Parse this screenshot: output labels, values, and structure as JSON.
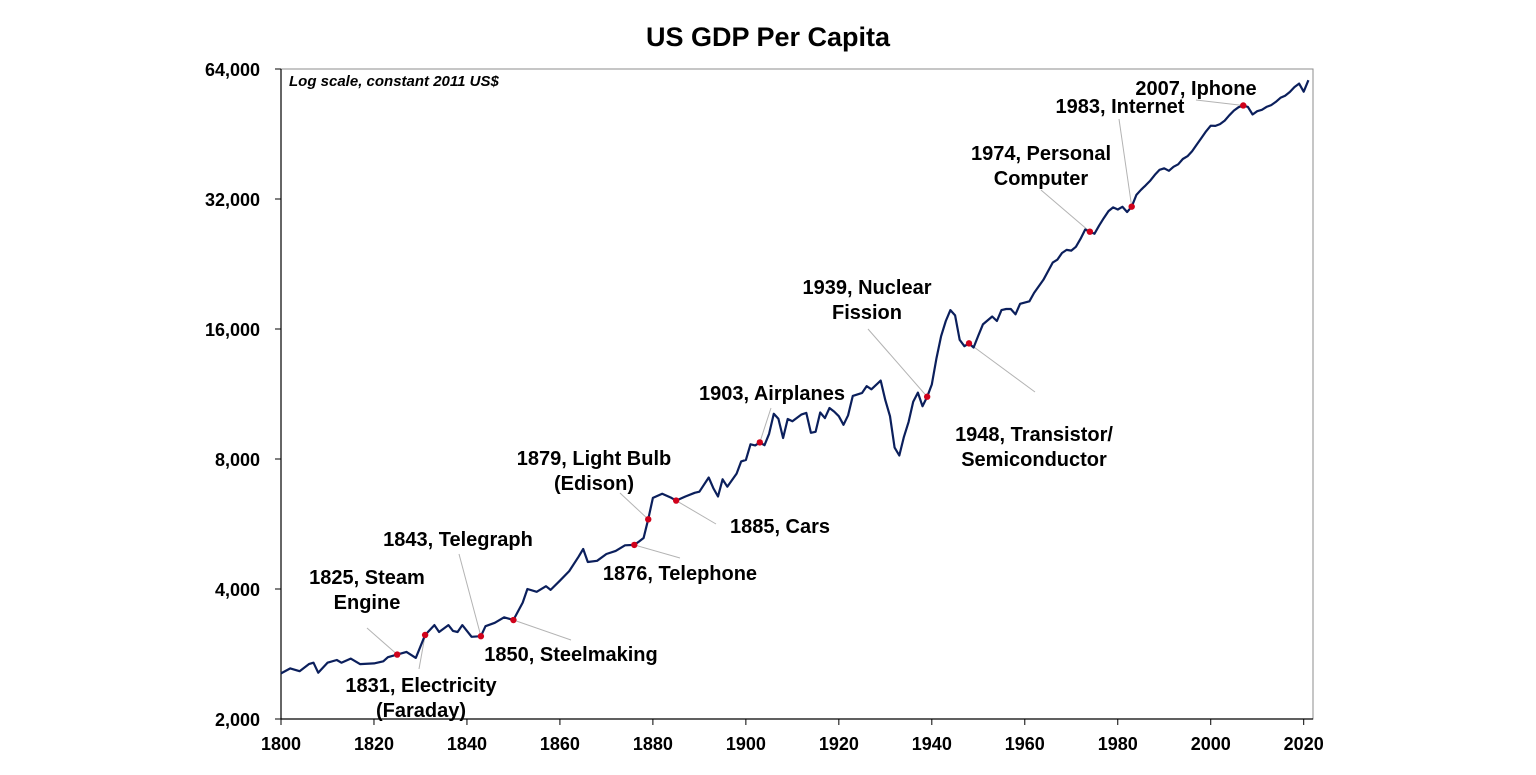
{
  "chart_data": {
    "type": "line",
    "title": "US GDP Per Capita",
    "note": "Log scale, constant 2011 US$",
    "xlabel": "",
    "ylabel": "",
    "yscale": "log2",
    "xlim": [
      1800,
      2022
    ],
    "ylim": [
      2000,
      64000
    ],
    "x_ticks": [
      1800,
      1820,
      1840,
      1860,
      1880,
      1900,
      1920,
      1940,
      1960,
      1980,
      2000,
      2020
    ],
    "x_tick_labels": [
      "1800",
      "1820",
      "1840",
      "1860",
      "1880",
      "1900",
      "1920",
      "1940",
      "1960",
      "1980",
      "2000",
      "2020"
    ],
    "y_ticks": [
      2000,
      4000,
      8000,
      16000,
      32000,
      64000
    ],
    "y_tick_labels": [
      "2,000",
      "4,000",
      "8,000",
      "16,000",
      "32,000",
      "64,000"
    ],
    "series": [
      {
        "name": "US GDP Per Capita",
        "color": "#0b1f5c",
        "points": [
          [
            1800,
            2550
          ],
          [
            1802,
            2620
          ],
          [
            1804,
            2580
          ],
          [
            1806,
            2680
          ],
          [
            1807,
            2700
          ],
          [
            1808,
            2560
          ],
          [
            1810,
            2700
          ],
          [
            1812,
            2740
          ],
          [
            1813,
            2700
          ],
          [
            1815,
            2760
          ],
          [
            1817,
            2680
          ],
          [
            1820,
            2690
          ],
          [
            1822,
            2720
          ],
          [
            1823,
            2780
          ],
          [
            1825,
            2820
          ],
          [
            1827,
            2860
          ],
          [
            1829,
            2770
          ],
          [
            1831,
            3130
          ],
          [
            1833,
            3300
          ],
          [
            1834,
            3180
          ],
          [
            1836,
            3300
          ],
          [
            1837,
            3200
          ],
          [
            1838,
            3180
          ],
          [
            1839,
            3300
          ],
          [
            1841,
            3100
          ],
          [
            1843,
            3110
          ],
          [
            1844,
            3280
          ],
          [
            1846,
            3340
          ],
          [
            1848,
            3440
          ],
          [
            1850,
            3390
          ],
          [
            1852,
            3720
          ],
          [
            1853,
            4000
          ],
          [
            1855,
            3940
          ],
          [
            1857,
            4060
          ],
          [
            1858,
            3980
          ],
          [
            1860,
            4180
          ],
          [
            1862,
            4400
          ],
          [
            1864,
            4750
          ],
          [
            1865,
            4950
          ],
          [
            1866,
            4620
          ],
          [
            1868,
            4650
          ],
          [
            1870,
            4820
          ],
          [
            1872,
            4900
          ],
          [
            1874,
            5050
          ],
          [
            1876,
            5060
          ],
          [
            1877,
            5150
          ],
          [
            1878,
            5250
          ],
          [
            1879,
            5800
          ],
          [
            1880,
            6500
          ],
          [
            1882,
            6650
          ],
          [
            1884,
            6500
          ],
          [
            1885,
            6410
          ],
          [
            1887,
            6550
          ],
          [
            1889,
            6680
          ],
          [
            1890,
            6720
          ],
          [
            1892,
            7250
          ],
          [
            1893,
            6850
          ],
          [
            1894,
            6550
          ],
          [
            1895,
            7180
          ],
          [
            1896,
            6900
          ],
          [
            1898,
            7400
          ],
          [
            1899,
            7900
          ],
          [
            1900,
            7960
          ],
          [
            1901,
            8650
          ],
          [
            1902,
            8600
          ],
          [
            1903,
            8740
          ],
          [
            1904,
            8610
          ],
          [
            1905,
            9150
          ],
          [
            1906,
            10180
          ],
          [
            1907,
            9910
          ],
          [
            1908,
            8950
          ],
          [
            1909,
            9900
          ],
          [
            1910,
            9780
          ],
          [
            1912,
            10150
          ],
          [
            1913,
            10230
          ],
          [
            1914,
            9200
          ],
          [
            1915,
            9250
          ],
          [
            1916,
            10250
          ],
          [
            1917,
            9950
          ],
          [
            1918,
            10500
          ],
          [
            1919,
            10300
          ],
          [
            1920,
            10050
          ],
          [
            1921,
            9600
          ],
          [
            1922,
            10100
          ],
          [
            1923,
            11200
          ],
          [
            1925,
            11380
          ],
          [
            1926,
            11800
          ],
          [
            1927,
            11600
          ],
          [
            1929,
            12150
          ],
          [
            1930,
            10950
          ],
          [
            1931,
            10050
          ],
          [
            1932,
            8500
          ],
          [
            1933,
            8150
          ],
          [
            1934,
            9000
          ],
          [
            1935,
            9750
          ],
          [
            1936,
            10850
          ],
          [
            1937,
            11400
          ],
          [
            1938,
            10600
          ],
          [
            1939,
            11150
          ],
          [
            1940,
            11900
          ],
          [
            1941,
            13700
          ],
          [
            1942,
            15400
          ],
          [
            1943,
            16700
          ],
          [
            1944,
            17700
          ],
          [
            1945,
            17200
          ],
          [
            1946,
            15100
          ],
          [
            1947,
            14600
          ],
          [
            1948,
            14820
          ],
          [
            1949,
            14500
          ],
          [
            1950,
            15450
          ],
          [
            1951,
            16400
          ],
          [
            1953,
            17100
          ],
          [
            1954,
            16700
          ],
          [
            1955,
            17700
          ],
          [
            1956,
            17800
          ],
          [
            1957,
            17800
          ],
          [
            1958,
            17300
          ],
          [
            1959,
            18300
          ],
          [
            1961,
            18550
          ],
          [
            1962,
            19400
          ],
          [
            1964,
            20800
          ],
          [
            1966,
            22800
          ],
          [
            1967,
            23150
          ],
          [
            1968,
            24000
          ],
          [
            1969,
            24400
          ],
          [
            1970,
            24300
          ],
          [
            1971,
            24800
          ],
          [
            1972,
            25900
          ],
          [
            1973,
            27200
          ],
          [
            1974,
            26880
          ],
          [
            1975,
            26600
          ],
          [
            1976,
            27800
          ],
          [
            1977,
            28900
          ],
          [
            1978,
            30000
          ],
          [
            1979,
            30600
          ],
          [
            1980,
            30250
          ],
          [
            1981,
            30700
          ],
          [
            1982,
            29850
          ],
          [
            1983,
            30720
          ],
          [
            1984,
            32700
          ],
          [
            1985,
            33600
          ],
          [
            1986,
            34400
          ],
          [
            1987,
            35300
          ],
          [
            1988,
            36400
          ],
          [
            1989,
            37400
          ],
          [
            1990,
            37700
          ],
          [
            1991,
            37200
          ],
          [
            1992,
            38000
          ],
          [
            1993,
            38500
          ],
          [
            1994,
            39600
          ],
          [
            1995,
            40200
          ],
          [
            1996,
            41300
          ],
          [
            1997,
            42800
          ],
          [
            1998,
            44300
          ],
          [
            1999,
            45900
          ],
          [
            2000,
            47300
          ],
          [
            2001,
            47250
          ],
          [
            2002,
            47700
          ],
          [
            2003,
            48600
          ],
          [
            2004,
            50000
          ],
          [
            2005,
            51300
          ],
          [
            2006,
            52200
          ],
          [
            2007,
            52690
          ],
          [
            2008,
            52300
          ],
          [
            2009,
            50200
          ],
          [
            2010,
            51100
          ],
          [
            2011,
            51500
          ],
          [
            2012,
            52300
          ],
          [
            2013,
            52800
          ],
          [
            2014,
            53700
          ],
          [
            2015,
            54900
          ],
          [
            2016,
            55500
          ],
          [
            2017,
            56600
          ],
          [
            2018,
            58100
          ],
          [
            2019,
            59200
          ],
          [
            2020,
            56700
          ],
          [
            2021,
            60300
          ]
        ]
      }
    ],
    "annotations": [
      {
        "id": "steam-engine",
        "year": 1825,
        "value": 2820,
        "lines": [
          "1825, Steam",
          "Engine"
        ]
      },
      {
        "id": "electricity",
        "year": 1831,
        "value": 3130,
        "lines": [
          "1831, Electricity",
          "(Faraday)"
        ]
      },
      {
        "id": "telegraph",
        "year": 1843,
        "value": 3110,
        "lines": [
          "1843, Telegraph"
        ]
      },
      {
        "id": "steelmaking",
        "year": 1850,
        "value": 3390,
        "lines": [
          "1850, Steelmaking"
        ]
      },
      {
        "id": "telephone",
        "year": 1876,
        "value": 5060,
        "lines": [
          "1876, Telephone"
        ]
      },
      {
        "id": "light-bulb",
        "year": 1879,
        "value": 5800,
        "lines": [
          "1879, Light Bulb",
          "(Edison)"
        ]
      },
      {
        "id": "cars",
        "year": 1885,
        "value": 6410,
        "lines": [
          "1885, Cars"
        ]
      },
      {
        "id": "airplanes",
        "year": 1903,
        "value": 8740,
        "lines": [
          "1903, Airplanes"
        ]
      },
      {
        "id": "nuclear-fission",
        "year": 1939,
        "value": 11150,
        "lines": [
          "1939, Nuclear",
          "Fission"
        ]
      },
      {
        "id": "transistor",
        "year": 1948,
        "value": 14820,
        "lines": [
          "1948, Transistor/",
          "Semiconductor"
        ]
      },
      {
        "id": "personal-computer",
        "year": 1974,
        "value": 26880,
        "lines": [
          "1974, Personal",
          "Computer"
        ]
      },
      {
        "id": "internet",
        "year": 1983,
        "value": 30720,
        "lines": [
          "1983, Internet"
        ]
      },
      {
        "id": "iphone",
        "year": 2007,
        "value": 52690,
        "lines": [
          "2007, Iphone"
        ]
      }
    ],
    "grid": false,
    "marker_color": "#d0021b",
    "leader_color": "#b3b3b3"
  }
}
